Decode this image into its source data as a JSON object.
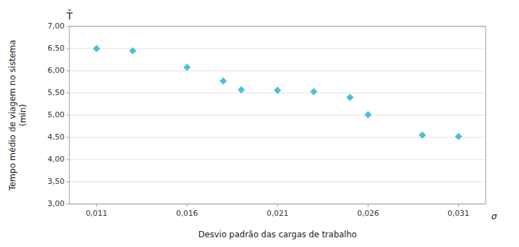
{
  "chart_data": {
    "type": "scatter",
    "x": [
      0.011,
      0.013,
      0.016,
      0.018,
      0.019,
      0.021,
      0.023,
      0.025,
      0.026,
      0.029,
      0.031
    ],
    "y": [
      6.5,
      6.45,
      6.08,
      5.77,
      5.57,
      5.56,
      5.53,
      5.4,
      5.01,
      4.55,
      4.52
    ],
    "errors": [
      0.065,
      0.065,
      0.065,
      0.065,
      0.065,
      0.065,
      0.065,
      0.065,
      0.065,
      0.065,
      0.065
    ],
    "color": "#4BBFD8",
    "marker": "diamond",
    "x_label": "Desvio padrão das cargas de trabalho",
    "y_label": "Tempo médio de viagem no sistema\n(min)",
    "annotations": [
      "T̄",
      "σ"
    ],
    "xlim": [
      0.0095,
      0.0325
    ],
    "ylim": [
      3.0,
      7.0
    ],
    "xticks": [
      {
        "value": 0.011,
        "label": "0,011"
      },
      {
        "value": 0.016,
        "label": "0,016"
      },
      {
        "value": 0.021,
        "label": "0,021"
      },
      {
        "value": 0.026,
        "label": "0,026"
      },
      {
        "value": 0.031,
        "label": "0,031"
      }
    ],
    "yticks": [
      {
        "value": 3.0,
        "label": "3,00"
      },
      {
        "value": 3.5,
        "label": "3,50"
      },
      {
        "value": 4.0,
        "label": "4,00"
      },
      {
        "value": 4.5,
        "label": "4,50"
      },
      {
        "value": 5.0,
        "label": "5,00"
      },
      {
        "value": 5.5,
        "label": "5,50"
      },
      {
        "value": 6.0,
        "label": "6,00"
      },
      {
        "value": 6.5,
        "label": "6,50"
      },
      {
        "value": 7.0,
        "label": "7,00"
      }
    ],
    "grid": true
  }
}
